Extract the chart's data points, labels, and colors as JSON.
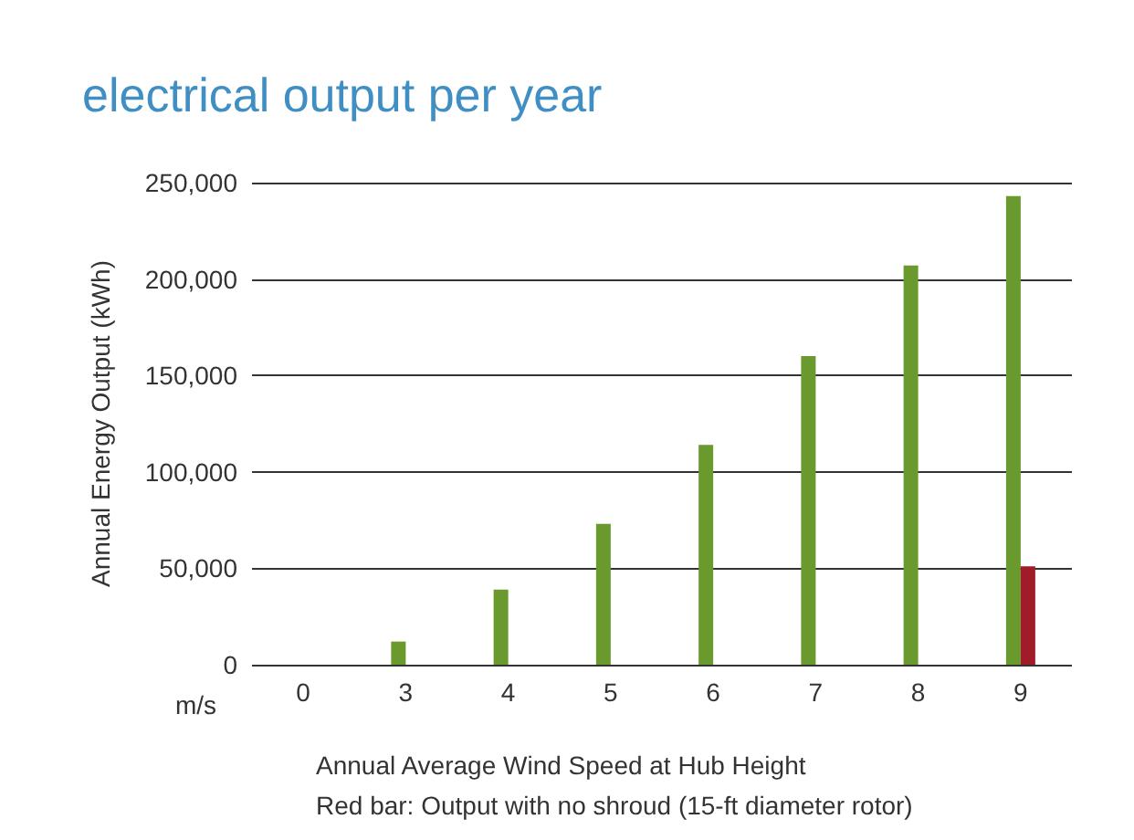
{
  "chart_data": {
    "type": "bar",
    "title": "electrical output per year",
    "xlabel": "Annual Average Wind Speed at Hub Height",
    "ylabel": "Annual Energy Output (kWh)",
    "categories": [
      "0",
      "3",
      "4",
      "5",
      "6",
      "7",
      "8",
      "9"
    ],
    "series": [
      {
        "color": "#6a9a2e",
        "values": [
          0,
          12000,
          39000,
          73000,
          114000,
          160000,
          207000,
          243000
        ]
      },
      {
        "color": "#a01c2a",
        "values": [
          null,
          null,
          null,
          null,
          null,
          null,
          null,
          51000
        ]
      }
    ],
    "ylim": [
      0,
      250000
    ],
    "yticks": [
      {
        "value": 0,
        "label": "0"
      },
      {
        "value": 50000,
        "label": "50,000"
      },
      {
        "value": 100000,
        "label": "100,000"
      },
      {
        "value": 150000,
        "label": "150,000"
      },
      {
        "value": 200000,
        "label": "200,000"
      },
      {
        "value": 250000,
        "label": "250,000"
      }
    ],
    "grid": "y",
    "annotations": [
      "m/s",
      "Red bar: Output with no shroud (15-ft diameter rotor)"
    ]
  }
}
